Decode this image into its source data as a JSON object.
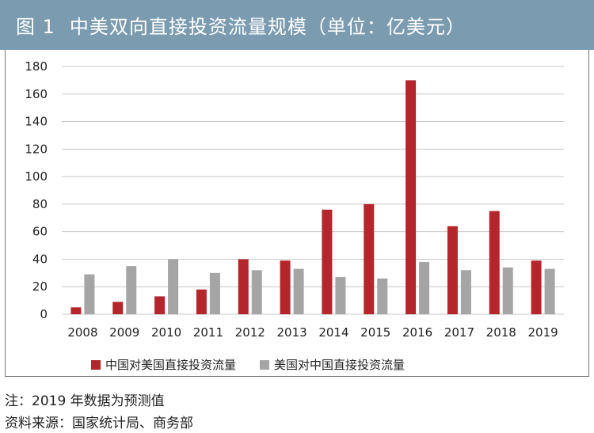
{
  "header": {
    "figure_label": "图 1",
    "title": "中美双向直接投资流量规模（单位：亿美元）"
  },
  "chart_data": {
    "type": "bar",
    "title": "中美双向直接投资流量规模（单位：亿美元）",
    "categories": [
      "2008",
      "2009",
      "2010",
      "2011",
      "2012",
      "2013",
      "2014",
      "2015",
      "2016",
      "2017",
      "2018",
      "2019"
    ],
    "series": [
      {
        "name": "中国对美国直接投资流量",
        "color": "#b5252c",
        "values": [
          5,
          9,
          13,
          18,
          40,
          39,
          76,
          80,
          170,
          64,
          75,
          39
        ]
      },
      {
        "name": "美国对中国直接投资流量",
        "color": "#a5a5a5",
        "values": [
          29,
          35,
          40,
          30,
          32,
          33,
          27,
          26,
          38,
          32,
          34,
          33
        ]
      }
    ],
    "ylim": [
      0,
      180
    ],
    "yticks": [
      0,
      20,
      40,
      60,
      80,
      100,
      120,
      140,
      160,
      180
    ],
    "grid": true,
    "legend_position": "bottom",
    "xlabel": "",
    "ylabel": ""
  },
  "notes": {
    "note": "注：2019 年数据为预测值",
    "source": "资料来源：国家统计局、商务部"
  }
}
